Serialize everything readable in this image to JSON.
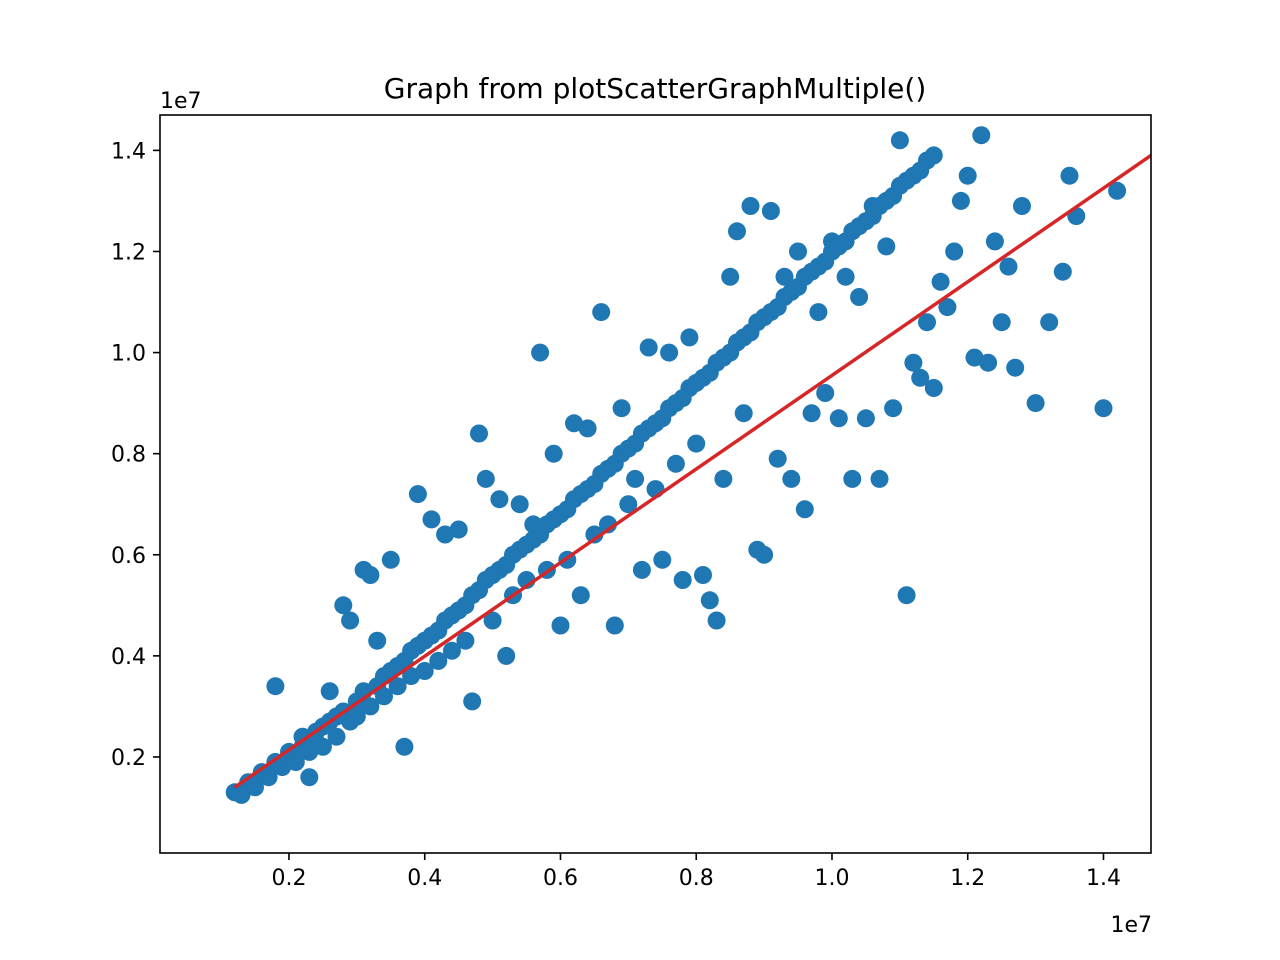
{
  "chart_data": {
    "type": "scatter",
    "title": "Graph from plotScatterGraphMultiple()",
    "xlabel": "",
    "ylabel": "",
    "x_offset_label": "1e7",
    "y_offset_label": "1e7",
    "xlim": [
      0.01,
      1.47
    ],
    "ylim": [
      0.01,
      1.47
    ],
    "x_ticks": [
      {
        "value": 0.2,
        "label": "0.2"
      },
      {
        "value": 0.4,
        "label": "0.4"
      },
      {
        "value": 0.6,
        "label": "0.6"
      },
      {
        "value": 0.8,
        "label": "0.8"
      },
      {
        "value": 1.0,
        "label": "1.0"
      },
      {
        "value": 1.2,
        "label": "1.2"
      },
      {
        "value": 1.4,
        "label": "1.4"
      }
    ],
    "y_ticks": [
      {
        "value": 0.2,
        "label": "0.2"
      },
      {
        "value": 0.4,
        "label": "0.4"
      },
      {
        "value": 0.6,
        "label": "0.6"
      },
      {
        "value": 0.8,
        "label": "0.8"
      },
      {
        "value": 1.0,
        "label": "1.0"
      },
      {
        "value": 1.2,
        "label": "1.2"
      },
      {
        "value": 1.4,
        "label": "1.4"
      }
    ],
    "grid": false,
    "legend": "none",
    "series": [
      {
        "kind": "scatter",
        "color": "#1f77b4",
        "points": [
          [
            0.12,
            0.13
          ],
          [
            0.13,
            0.125
          ],
          [
            0.14,
            0.15
          ],
          [
            0.15,
            0.14
          ],
          [
            0.16,
            0.17
          ],
          [
            0.17,
            0.16
          ],
          [
            0.18,
            0.34
          ],
          [
            0.18,
            0.19
          ],
          [
            0.19,
            0.18
          ],
          [
            0.2,
            0.21
          ],
          [
            0.2,
            0.2
          ],
          [
            0.21,
            0.19
          ],
          [
            0.22,
            0.22
          ],
          [
            0.22,
            0.24
          ],
          [
            0.23,
            0.21
          ],
          [
            0.23,
            0.16
          ],
          [
            0.24,
            0.25
          ],
          [
            0.24,
            0.23
          ],
          [
            0.25,
            0.26
          ],
          [
            0.25,
            0.22
          ],
          [
            0.26,
            0.27
          ],
          [
            0.26,
            0.33
          ],
          [
            0.27,
            0.24
          ],
          [
            0.27,
            0.28
          ],
          [
            0.28,
            0.5
          ],
          [
            0.28,
            0.29
          ],
          [
            0.29,
            0.27
          ],
          [
            0.29,
            0.47
          ],
          [
            0.3,
            0.31
          ],
          [
            0.3,
            0.28
          ],
          [
            0.31,
            0.33
          ],
          [
            0.31,
            0.57
          ],
          [
            0.32,
            0.56
          ],
          [
            0.32,
            0.3
          ],
          [
            0.33,
            0.34
          ],
          [
            0.33,
            0.43
          ],
          [
            0.34,
            0.36
          ],
          [
            0.34,
            0.32
          ],
          [
            0.35,
            0.37
          ],
          [
            0.35,
            0.59
          ],
          [
            0.36,
            0.38
          ],
          [
            0.36,
            0.34
          ],
          [
            0.37,
            0.39
          ],
          [
            0.37,
            0.22
          ],
          [
            0.38,
            0.41
          ],
          [
            0.38,
            0.36
          ],
          [
            0.39,
            0.42
          ],
          [
            0.39,
            0.72
          ],
          [
            0.4,
            0.43
          ],
          [
            0.4,
            0.37
          ],
          [
            0.41,
            0.44
          ],
          [
            0.41,
            0.67
          ],
          [
            0.42,
            0.45
          ],
          [
            0.42,
            0.39
          ],
          [
            0.43,
            0.47
          ],
          [
            0.43,
            0.64
          ],
          [
            0.44,
            0.48
          ],
          [
            0.44,
            0.41
          ],
          [
            0.45,
            0.49
          ],
          [
            0.45,
            0.65
          ],
          [
            0.46,
            0.5
          ],
          [
            0.46,
            0.43
          ],
          [
            0.47,
            0.52
          ],
          [
            0.47,
            0.31
          ],
          [
            0.48,
            0.53
          ],
          [
            0.48,
            0.84
          ],
          [
            0.49,
            0.55
          ],
          [
            0.49,
            0.75
          ],
          [
            0.5,
            0.56
          ],
          [
            0.5,
            0.47
          ],
          [
            0.51,
            0.57
          ],
          [
            0.51,
            0.71
          ],
          [
            0.52,
            0.58
          ],
          [
            0.52,
            0.4
          ],
          [
            0.53,
            0.6
          ],
          [
            0.53,
            0.52
          ],
          [
            0.54,
            0.61
          ],
          [
            0.54,
            0.7
          ],
          [
            0.55,
            0.62
          ],
          [
            0.55,
            0.55
          ],
          [
            0.56,
            0.63
          ],
          [
            0.56,
            0.66
          ],
          [
            0.57,
            0.64
          ],
          [
            0.57,
            1.0
          ],
          [
            0.58,
            0.66
          ],
          [
            0.58,
            0.57
          ],
          [
            0.59,
            0.67
          ],
          [
            0.59,
            0.8
          ],
          [
            0.6,
            0.68
          ],
          [
            0.6,
            0.46
          ],
          [
            0.61,
            0.69
          ],
          [
            0.61,
            0.59
          ],
          [
            0.62,
            0.71
          ],
          [
            0.62,
            0.86
          ],
          [
            0.63,
            0.72
          ],
          [
            0.63,
            0.52
          ],
          [
            0.64,
            0.73
          ],
          [
            0.64,
            0.85
          ],
          [
            0.65,
            0.74
          ],
          [
            0.65,
            0.64
          ],
          [
            0.66,
            0.76
          ],
          [
            0.66,
            1.08
          ],
          [
            0.67,
            0.77
          ],
          [
            0.67,
            0.66
          ],
          [
            0.68,
            0.78
          ],
          [
            0.68,
            0.46
          ],
          [
            0.69,
            0.8
          ],
          [
            0.69,
            0.89
          ],
          [
            0.7,
            0.81
          ],
          [
            0.7,
            0.7
          ],
          [
            0.71,
            0.82
          ],
          [
            0.71,
            0.75
          ],
          [
            0.72,
            0.84
          ],
          [
            0.72,
            0.57
          ],
          [
            0.73,
            0.85
          ],
          [
            0.73,
            1.01
          ],
          [
            0.74,
            0.86
          ],
          [
            0.74,
            0.73
          ],
          [
            0.75,
            0.87
          ],
          [
            0.75,
            0.59
          ],
          [
            0.76,
            0.89
          ],
          [
            0.76,
            1.0
          ],
          [
            0.77,
            0.9
          ],
          [
            0.77,
            0.78
          ],
          [
            0.78,
            0.91
          ],
          [
            0.78,
            0.55
          ],
          [
            0.79,
            0.93
          ],
          [
            0.79,
            1.03
          ],
          [
            0.8,
            0.94
          ],
          [
            0.8,
            0.82
          ],
          [
            0.81,
            0.95
          ],
          [
            0.81,
            0.56
          ],
          [
            0.82,
            0.96
          ],
          [
            0.82,
            0.51
          ],
          [
            0.83,
            0.98
          ],
          [
            0.83,
            0.47
          ],
          [
            0.84,
            0.99
          ],
          [
            0.84,
            0.75
          ],
          [
            0.85,
            1.0
          ],
          [
            0.85,
            1.15
          ],
          [
            0.86,
            1.02
          ],
          [
            0.86,
            1.24
          ],
          [
            0.87,
            1.03
          ],
          [
            0.87,
            0.88
          ],
          [
            0.88,
            1.04
          ],
          [
            0.88,
            1.29
          ],
          [
            0.89,
            1.06
          ],
          [
            0.89,
            0.61
          ],
          [
            0.9,
            1.07
          ],
          [
            0.9,
            0.6
          ],
          [
            0.91,
            1.08
          ],
          [
            0.91,
            1.28
          ],
          [
            0.92,
            1.09
          ],
          [
            0.92,
            0.79
          ],
          [
            0.93,
            1.11
          ],
          [
            0.93,
            1.15
          ],
          [
            0.94,
            1.12
          ],
          [
            0.94,
            0.75
          ],
          [
            0.95,
            1.13
          ],
          [
            0.95,
            1.2
          ],
          [
            0.96,
            1.15
          ],
          [
            0.96,
            0.69
          ],
          [
            0.97,
            1.16
          ],
          [
            0.97,
            0.88
          ],
          [
            0.98,
            1.17
          ],
          [
            0.98,
            1.08
          ],
          [
            0.99,
            1.18
          ],
          [
            0.99,
            0.92
          ],
          [
            1.0,
            1.2
          ],
          [
            1.0,
            1.22
          ],
          [
            1.01,
            1.21
          ],
          [
            1.01,
            0.87
          ],
          [
            1.02,
            1.22
          ],
          [
            1.02,
            1.15
          ],
          [
            1.03,
            1.24
          ],
          [
            1.03,
            0.75
          ],
          [
            1.04,
            1.25
          ],
          [
            1.04,
            1.11
          ],
          [
            1.05,
            1.26
          ],
          [
            1.05,
            0.87
          ],
          [
            1.06,
            1.27
          ],
          [
            1.06,
            1.29
          ],
          [
            1.07,
            1.29
          ],
          [
            1.07,
            0.75
          ],
          [
            1.08,
            1.3
          ],
          [
            1.08,
            1.21
          ],
          [
            1.09,
            1.31
          ],
          [
            1.09,
            0.89
          ],
          [
            1.1,
            1.33
          ],
          [
            1.1,
            1.42
          ],
          [
            1.11,
            1.34
          ],
          [
            1.11,
            0.52
          ],
          [
            1.12,
            1.35
          ],
          [
            1.12,
            0.98
          ],
          [
            1.13,
            1.36
          ],
          [
            1.13,
            0.95
          ],
          [
            1.14,
            1.38
          ],
          [
            1.14,
            1.06
          ],
          [
            1.15,
            1.39
          ],
          [
            1.15,
            0.93
          ],
          [
            1.16,
            1.14
          ],
          [
            1.17,
            1.09
          ],
          [
            1.18,
            1.2
          ],
          [
            1.19,
            1.3
          ],
          [
            1.2,
            1.35
          ],
          [
            1.21,
            0.99
          ],
          [
            1.22,
            1.43
          ],
          [
            1.23,
            0.98
          ],
          [
            1.24,
            1.22
          ],
          [
            1.25,
            1.06
          ],
          [
            1.26,
            1.17
          ],
          [
            1.27,
            0.97
          ],
          [
            1.28,
            1.29
          ],
          [
            1.3,
            0.9
          ],
          [
            1.32,
            1.06
          ],
          [
            1.34,
            1.16
          ],
          [
            1.35,
            1.35
          ],
          [
            1.36,
            1.27
          ],
          [
            1.4,
            0.89
          ],
          [
            1.42,
            1.32
          ]
        ]
      },
      {
        "kind": "line",
        "color": "#d62728",
        "points": [
          [
            0.12,
            0.14
          ],
          [
            1.47,
            1.39
          ]
        ]
      }
    ]
  }
}
